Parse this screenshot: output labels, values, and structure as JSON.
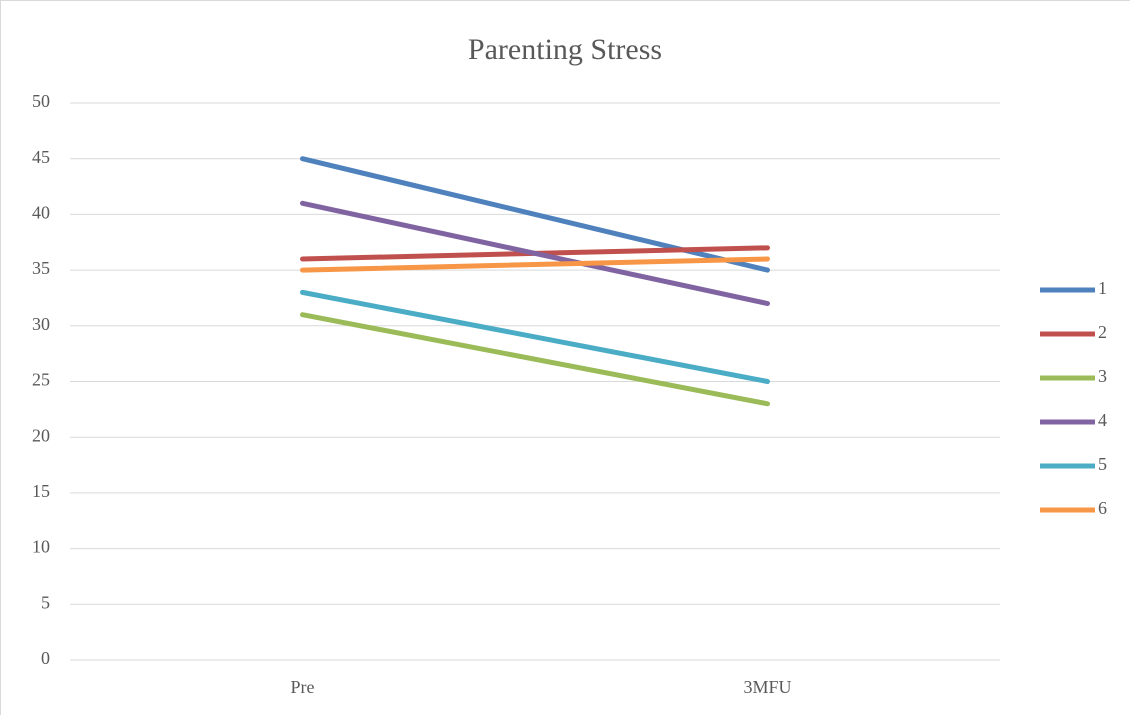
{
  "chart_data": {
    "type": "line",
    "title": "Parenting Stress",
    "categories": [
      "Pre",
      "3MFU"
    ],
    "series": [
      {
        "name": "1",
        "color": "#4f81bd",
        "values": [
          45,
          35
        ]
      },
      {
        "name": "2",
        "color": "#c0504d",
        "values": [
          36,
          37
        ]
      },
      {
        "name": "3",
        "color": "#9bbb59",
        "values": [
          31,
          23
        ]
      },
      {
        "name": "4",
        "color": "#8064a2",
        "values": [
          41,
          32
        ]
      },
      {
        "name": "5",
        "color": "#4bacc6",
        "values": [
          33,
          25
        ]
      },
      {
        "name": "6",
        "color": "#f79646",
        "values": [
          35,
          36
        ]
      }
    ],
    "ylim": [
      0,
      50
    ],
    "yticks": [
      0,
      5,
      10,
      15,
      20,
      25,
      30,
      35,
      40,
      45,
      50
    ],
    "grid": true,
    "legend": "right"
  }
}
